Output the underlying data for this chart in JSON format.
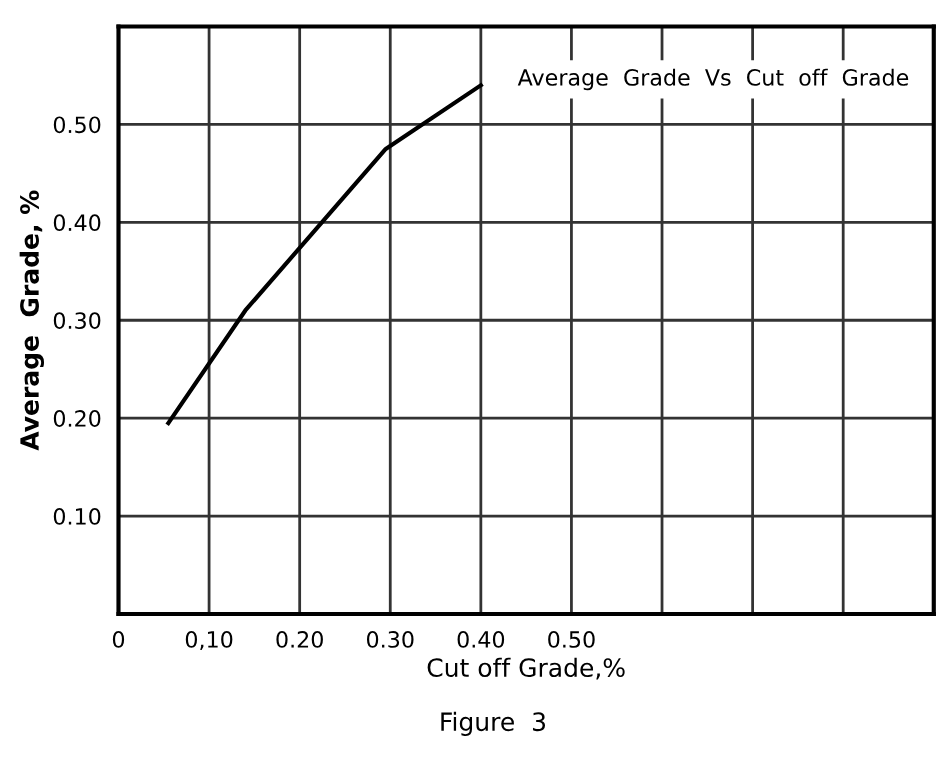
{
  "chart_data": {
    "type": "line",
    "title": "Average  Grade  Vs  Cut  off  Grade",
    "xlabel": "Cut off Grade,%",
    "ylabel": "Average  Grade, %",
    "x": [
      0.055,
      0.14,
      0.295,
      0.4
    ],
    "series": [
      {
        "color": "#000000",
        "values": [
          0.195,
          0.31,
          0.475,
          0.54
        ]
      }
    ],
    "xlim": [
      0,
      0.9
    ],
    "ylim": [
      0,
      0.6
    ],
    "xticks": [
      0,
      {
        "value": 0.1,
        "label": "0,10"
      },
      {
        "value": 0.2,
        "label": "0.20"
      },
      {
        "value": 0.3,
        "label": "0.30"
      },
      {
        "value": 0.4,
        "label": "0.40"
      },
      {
        "value": 0.5,
        "label": "0.50"
      },
      {
        "value": 0.6,
        "label": null
      },
      {
        "value": 0.7,
        "label": null
      },
      {
        "value": 0.8,
        "label": null
      }
    ],
    "yticks": [
      {
        "value": 0,
        "label": null
      },
      {
        "value": 0.1,
        "label": "0.10"
      },
      {
        "value": 0.2,
        "label": "0.20"
      },
      {
        "value": 0.3,
        "label": "0.30"
      },
      {
        "value": 0.4,
        "label": "0.40"
      },
      {
        "value": 0.5,
        "label": "0.50"
      }
    ],
    "grid": true,
    "marker": "none",
    "line_style": "solid",
    "annotations": [
      "Figure  3"
    ]
  }
}
